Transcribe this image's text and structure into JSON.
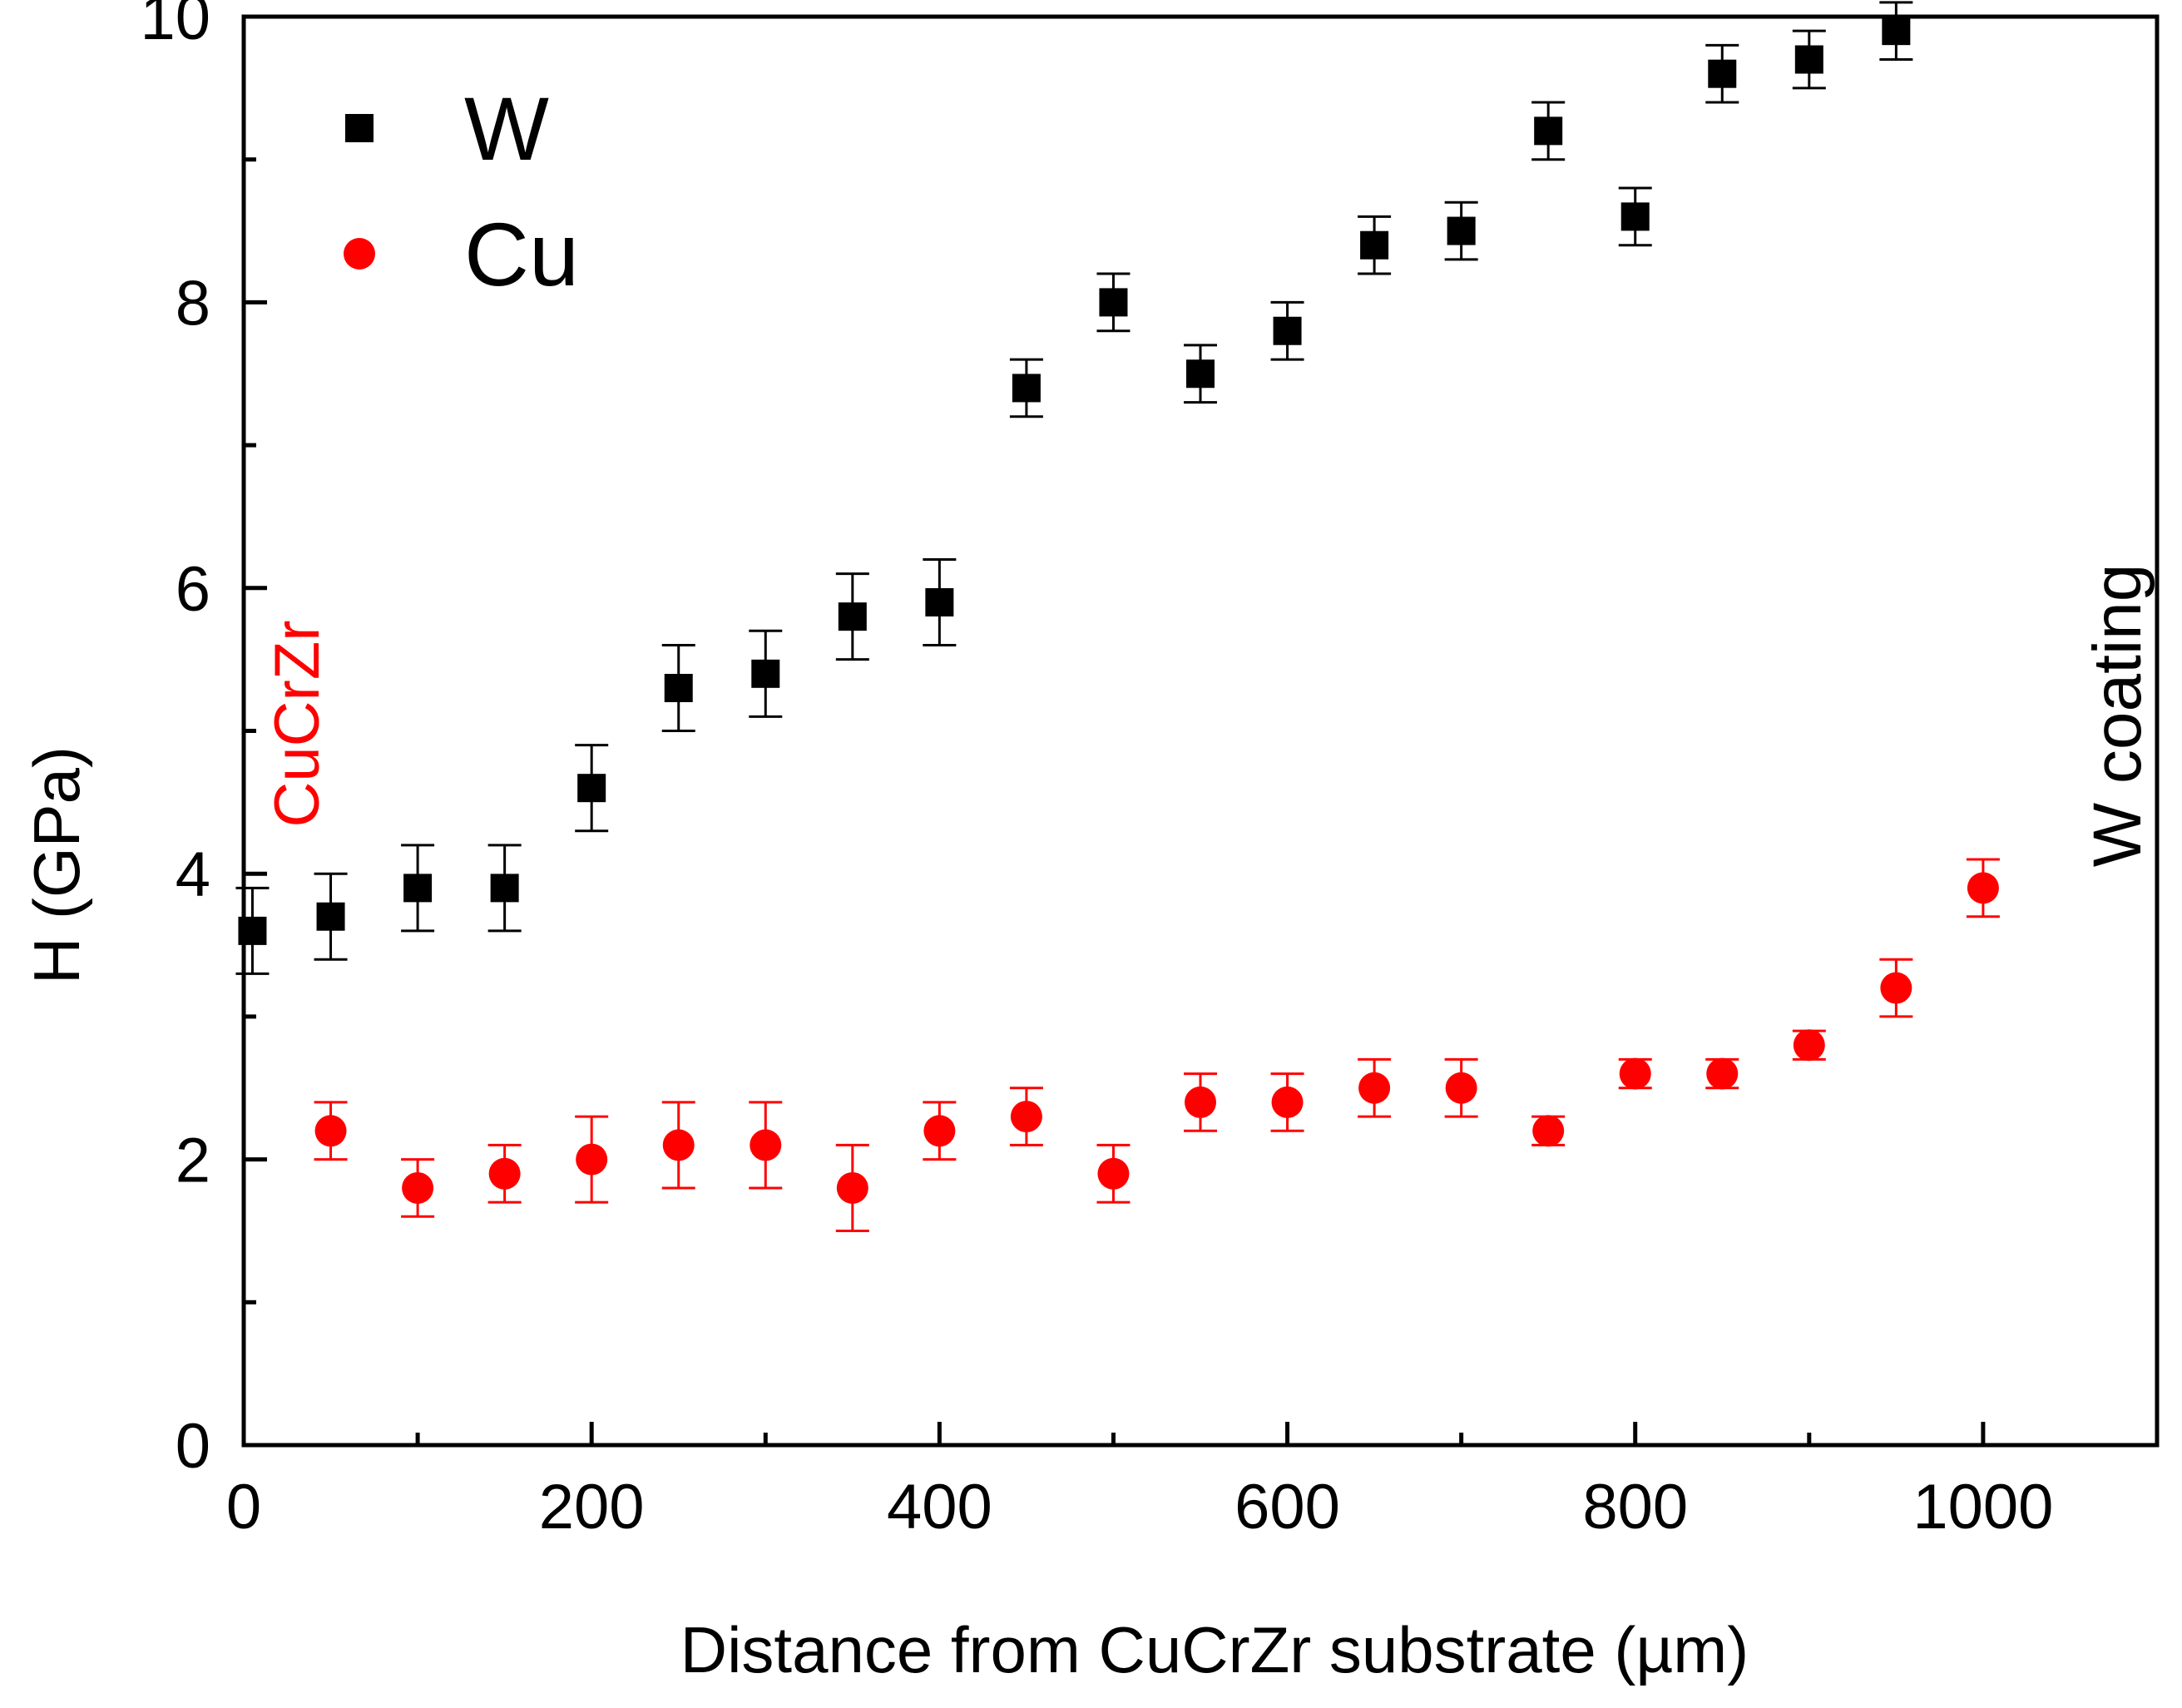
{
  "chart_data": {
    "type": "scatter",
    "title": "",
    "xlabel": "Distance from CuCrZr substrate (µm)",
    "ylabel": "H (GPa)",
    "xlim": [
      0,
      1100
    ],
    "ylim": [
      0,
      10
    ],
    "x_ticks": [
      0,
      200,
      400,
      600,
      800,
      1000
    ],
    "x_tick_labels": [
      "0",
      "200",
      "400",
      "600",
      "800",
      "1000"
    ],
    "x_minor_ticks": [
      100,
      300,
      500,
      700,
      900
    ],
    "y_ticks": [
      0,
      2,
      4,
      6,
      8,
      10
    ],
    "y_tick_labels": [
      "0",
      "2",
      "4",
      "6",
      "8",
      "10"
    ],
    "y_minor_ticks": [
      1,
      3,
      5,
      7,
      9
    ],
    "grid": false,
    "legend_position": "top-left",
    "annotations": [
      {
        "text": "CuCrZr",
        "color": "#ff0000",
        "placement": "left, rotated vertical"
      },
      {
        "text": "W coating",
        "color": "#000000",
        "placement": "right, rotated vertical"
      }
    ],
    "series": [
      {
        "name": "W",
        "marker": "square",
        "color": "#000000",
        "x": [
          5,
          50,
          100,
          150,
          200,
          250,
          300,
          350,
          400,
          450,
          500,
          550,
          600,
          650,
          700,
          750,
          800,
          850,
          900,
          950
        ],
        "y": [
          3.6,
          3.7,
          3.9,
          3.9,
          4.6,
          5.3,
          5.4,
          5.8,
          5.9,
          7.4,
          8.0,
          7.5,
          7.8,
          8.4,
          8.5,
          9.2,
          8.6,
          9.6,
          9.7,
          9.9
        ],
        "err": [
          0.3,
          0.3,
          0.3,
          0.3,
          0.3,
          0.3,
          0.3,
          0.3,
          0.3,
          0.2,
          0.2,
          0.2,
          0.2,
          0.2,
          0.2,
          0.2,
          0.2,
          0.2,
          0.2,
          0.2
        ]
      },
      {
        "name": "Cu",
        "marker": "circle",
        "color": "#ff0000",
        "x": [
          50,
          100,
          150,
          200,
          250,
          300,
          350,
          400,
          450,
          500,
          550,
          600,
          650,
          700,
          750,
          800,
          850,
          900,
          950,
          1000
        ],
        "y": [
          2.2,
          1.8,
          1.9,
          2.0,
          2.1,
          2.1,
          1.8,
          2.2,
          2.3,
          1.9,
          2.4,
          2.4,
          2.5,
          2.5,
          2.2,
          2.6,
          2.6,
          2.8,
          3.2,
          3.9
        ],
        "err": [
          0.2,
          0.2,
          0.2,
          0.3,
          0.3,
          0.3,
          0.3,
          0.2,
          0.2,
          0.2,
          0.2,
          0.2,
          0.2,
          0.2,
          0.1,
          0.1,
          0.1,
          0.1,
          0.2,
          0.2
        ]
      }
    ]
  }
}
